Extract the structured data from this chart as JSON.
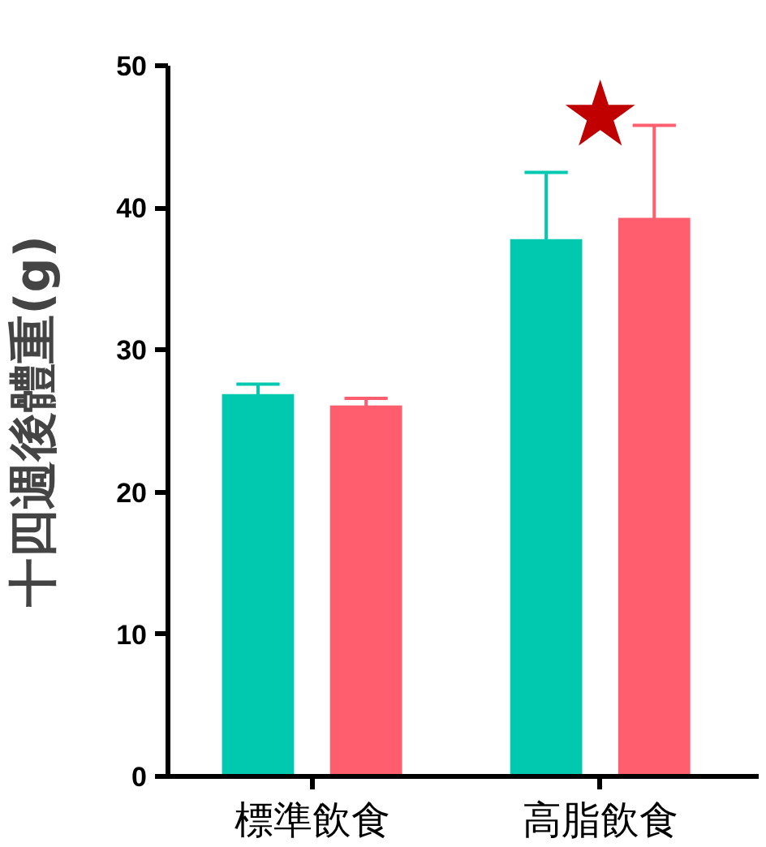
{
  "chart_data": {
    "type": "bar",
    "ylabel": "十四週後體重(g)",
    "categories": [
      "標準飲食",
      "高脂飲食"
    ],
    "series": [
      {
        "color": "#00c9b0",
        "values": [
          26.9,
          37.8
        ],
        "errors": [
          0.7,
          4.7
        ]
      },
      {
        "color": "#ff5e6e",
        "values": [
          26.1,
          39.3
        ],
        "errors": [
          0.5,
          6.5
        ]
      }
    ],
    "ylim": [
      0,
      50
    ],
    "yticks": [
      0,
      10,
      20,
      30,
      40,
      50
    ],
    "grid": false,
    "annotations": [
      "★"
    ]
  }
}
